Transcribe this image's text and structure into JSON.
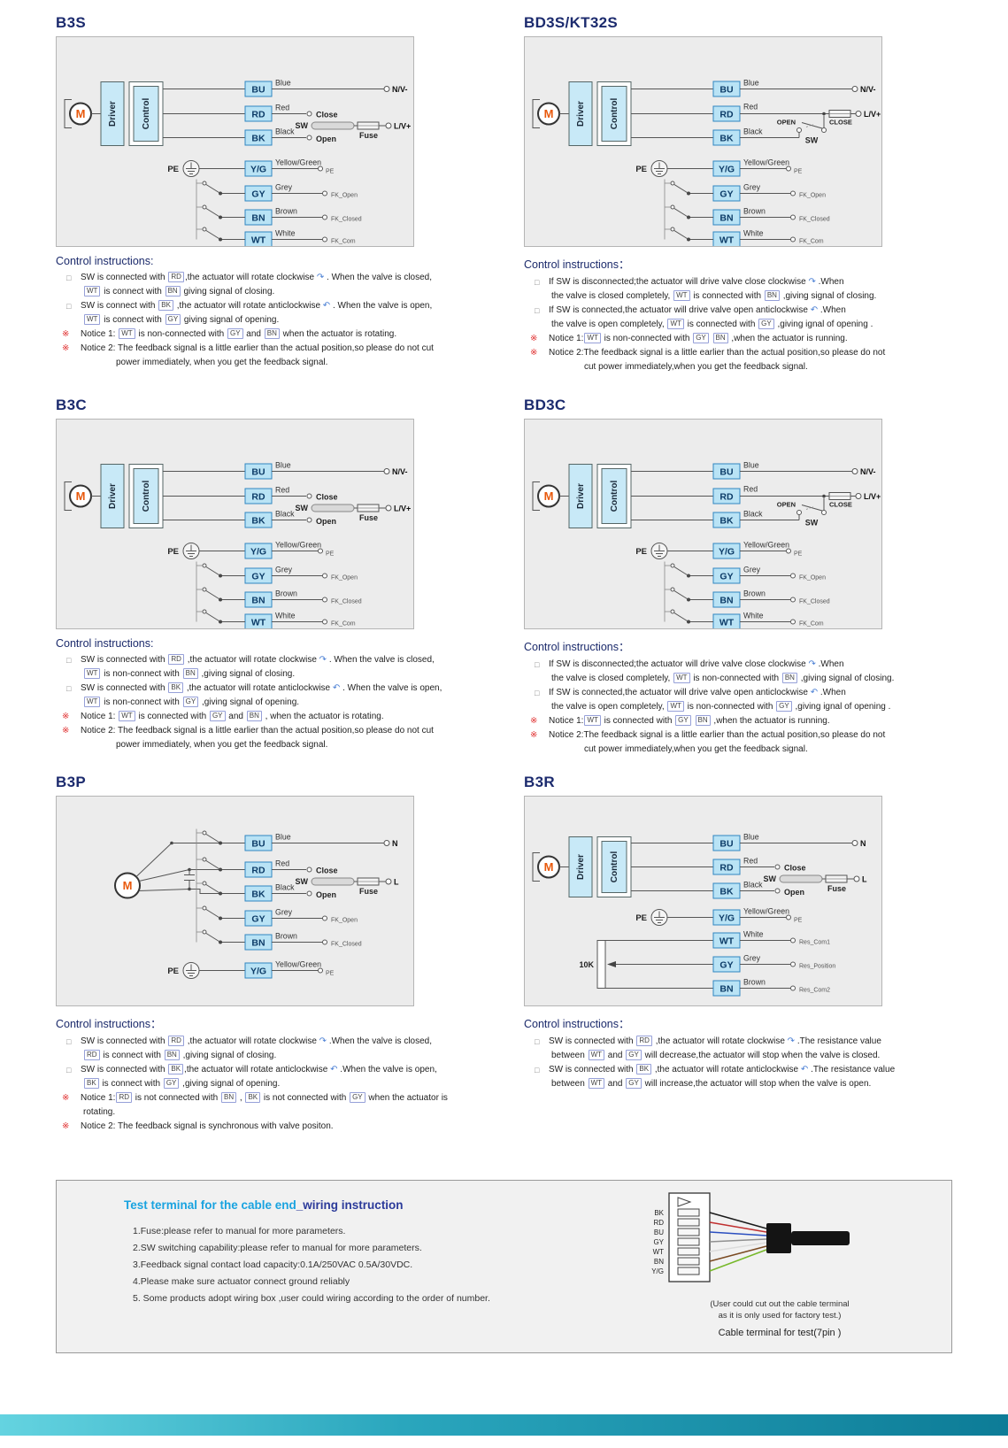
{
  "diagrams": {
    "a": {
      "motor": "M",
      "driver": "Driver",
      "control": "Control",
      "pe": "PE",
      "terminals": [
        "BU",
        "RD",
        "BK",
        "Y/G",
        "GY",
        "BN",
        "WT"
      ],
      "wires": [
        "Blue",
        "Red",
        "Black",
        "Yellow/Green",
        "Grey",
        "Brown",
        "White"
      ],
      "sw": "SW",
      "close": "Close",
      "open": "Open",
      "fuse": "Fuse",
      "n_term": "N/V-",
      "l_term": "L/V+",
      "pe_small": "PE",
      "fk_open": "FK_Open",
      "fk_closed": "FK_Closed",
      "fk_com": "FK_Com"
    },
    "b": {
      "motor": "M",
      "driver": "Driver",
      "control": "Control",
      "pe": "PE",
      "terminals": [
        "BU",
        "RD",
        "BK",
        "Y/G",
        "GY",
        "BN",
        "WT"
      ],
      "wires": [
        "Blue",
        "Red",
        "Black",
        "Yellow/Green",
        "Grey",
        "Brown",
        "White"
      ],
      "sw": "SW",
      "open_pos": "OPEN",
      "close_pos": "CLOSE",
      "n_term": "N/V-",
      "l_term": "L/V+",
      "pe_small": "PE",
      "fk_open": "FK_Open",
      "fk_closed": "FK_Closed",
      "fk_com": "FK_Com"
    },
    "p": {
      "motor": "M",
      "pe": "PE",
      "terminals": [
        "BU",
        "RD",
        "BK",
        "GY",
        "BN",
        "Y/G"
      ],
      "wires": [
        "Blue",
        "Red",
        "Black",
        "Grey",
        "Brown",
        "Yellow/Green"
      ],
      "sw": "SW",
      "close": "Close",
      "open": "Open",
      "fuse": "Fuse",
      "n_term": "N",
      "l_term": "L",
      "pe_small": "PE",
      "fk_open": "FK_Open",
      "fk_closed": "FK_Closed"
    },
    "r": {
      "motor": "M",
      "driver": "Driver",
      "control": "Control",
      "pe": "PE",
      "terminals": [
        "BU",
        "RD",
        "BK",
        "Y/G",
        "WT",
        "GY",
        "BN"
      ],
      "wires": [
        "Blue",
        "Red",
        "Black",
        "Yellow/Green",
        "White",
        "Grey",
        "Brown"
      ],
      "sw": "SW",
      "close": "Close",
      "open": "Open",
      "fuse": "Fuse",
      "n_term": "N",
      "l_term": "L",
      "pe_small": "PE",
      "pot": "10K",
      "res_com1": "Res_Com1",
      "res_pos": "Res_Position",
      "res_com2": "Res_Com2"
    }
  },
  "panels": {
    "b3s": {
      "title": "B3S",
      "instr_title": "Control instructions:",
      "instructions": [
        {
          "m": "c",
          "t": "SW is connected with [RD],the actuator will rotate clockwise {cw} . When the valve is closed,"
        },
        {
          "m": "",
          "t": "[WT] is connect with [BN] giving signal of closing."
        },
        {
          "m": "c",
          "t": "SW is connect with [BK] ,the actuator will rotate anticlockwise {ccw} . When the valve is open,"
        },
        {
          "m": "",
          "t": "[WT] is connect with [GY] giving signal of opening."
        },
        {
          "m": "n",
          "t": "Notice 1: [WT] is non-connected with [GY] and [BN] when the actuator is rotating."
        },
        {
          "m": "n",
          "t": "Notice 2: The feedback signal is a little earlier than the actual position,so please do not cut"
        },
        {
          "m": "",
          "i": 2,
          "t": "power immediately, when you get the feedback signal."
        }
      ]
    },
    "bd3s": {
      "title": "BD3S/KT32S",
      "instr_title": "Control instructions：",
      "instructions": [
        {
          "m": "c",
          "t": "If SW is disconnected;the actuator will drive valve close clockwise {cw} .When"
        },
        {
          "m": "",
          "t": "the valve is closed completely, [WT] is connected with [BN] ,giving signal of closing."
        },
        {
          "m": "c",
          "t": "If SW is connected,the actuator will drive valve open anticlockwise {ccw} .When"
        },
        {
          "m": "",
          "t": "the valve is open completely, [WT] is connected with [GY] ,giving ignal of opening ."
        },
        {
          "m": "n",
          "t": "Notice 1:[WT] is  non-connected with [GY] [BN] ,when the actuator is running."
        },
        {
          "m": "n",
          "t": "Notice 2:The feedback signal is a little earlier than the actual position,so please do not"
        },
        {
          "m": "",
          "i": 2,
          "t": "cut power immediately,when you get the feedback signal."
        }
      ]
    },
    "b3c": {
      "title": "B3C",
      "instr_title": "Control instructions:",
      "instructions": [
        {
          "m": "c",
          "t": "SW is connected with [RD] ,the actuator will rotate clockwise {cw} . When the valve is closed,"
        },
        {
          "m": "",
          "t": "[WT] is non-connect with [BN] ,giving signal of closing."
        },
        {
          "m": "c",
          "t": "SW is connected with [BK] ,the actuator will rotate anticlockwise {ccw} . When the valve is open,"
        },
        {
          "m": "",
          "t": "[WT] is non-connect with [GY] ,giving signal of opening."
        },
        {
          "m": "n",
          "t": "Notice 1: [WT] is connected with [GY] and [BN] , when the actuator is rotating."
        },
        {
          "m": "n",
          "t": "Notice 2: The feedback signal is a little earlier than the actual position,so please do not cut"
        },
        {
          "m": "",
          "i": 2,
          "t": "power immediately, when you get the feedback signal."
        }
      ]
    },
    "bd3c": {
      "title": "BD3C",
      "instr_title": "Control instructions：",
      "instructions": [
        {
          "m": "c",
          "t": "If SW is disconnected;the actuator will drive valve close clockwise {cw} .When"
        },
        {
          "m": "",
          "t": "the valve is closed completely, [WT] is non-connected with [BN] ,giving signal of closing."
        },
        {
          "m": "c",
          "t": "If SW is connected,the actuator will drive valve open anticlockwise {ccw} .When"
        },
        {
          "m": "",
          "t": "the valve is open completely, [WT] is non-connected with [GY] ,giving ignal of opening ."
        },
        {
          "m": "n",
          "t": "Notice 1:[WT] is  connected with [GY] [BN] ,when the actuator is running."
        },
        {
          "m": "n",
          "t": "Notice 2:The feedback signal is a little earlier than the actual position,so please do not"
        },
        {
          "m": "",
          "i": 2,
          "t": "cut power immediately,when you get the feedback signal."
        }
      ]
    },
    "b3p": {
      "title": "B3P",
      "instr_title": "Control instructions：",
      "instructions": [
        {
          "m": "c",
          "t": "SW is connected with [RD] ,the actuator will rotate clockwise {cw} .When the valve is closed,"
        },
        {
          "m": "",
          "t": "[RD] is connect with [BN] ,giving signal of closing."
        },
        {
          "m": "c",
          "t": "SW is connected with [BK],the actuator will rotate anticlockwise {ccw} .When the valve is open,"
        },
        {
          "m": "",
          "t": "[BK] is connect with [GY] ,giving signal of opening."
        },
        {
          "m": "n",
          "t": "Notice 1:[RD] is not connected with [BN] , [BK] is not connected with [GY] when the actuator is"
        },
        {
          "m": "",
          "t": "rotating."
        },
        {
          "m": "n",
          "t": "Notice 2: The feedback signal is synchronous with valve positon."
        }
      ]
    },
    "b3r": {
      "title": "B3R",
      "instr_title": "Control instructions：",
      "instructions": [
        {
          "m": "c",
          "t": "SW is connected with [RD] ,the actuator will rotate clockwise {cw} .The resistance value"
        },
        {
          "m": "",
          "t": "between [WT] and [GY] will decrease,the actuator will stop when the valve is closed."
        },
        {
          "m": "c",
          "t": "SW is connected with [BK] ,the actuator will rotate anticlockwise {ccw} .The resistance value"
        },
        {
          "m": "",
          "t": "between [WT] and [GY] will increase,the actuator will stop when the valve is open."
        }
      ]
    }
  },
  "footer": {
    "title_blue": "Test terminal for the cable end",
    "title_dark": "_wiring instruction",
    "items": [
      "1.Fuse:please refer to manual for more parameters.",
      "2.SW switching capability:please refer to manual for more parameters.",
      "3.Feedback signal contact load capacity:0.1A/250VAC 0.5A/30VDC.",
      "4.Please make sure actuator connect ground reliably",
      "5. Some products adopt wiring box ,user could wiring according to the order of number."
    ],
    "pins": [
      "BK",
      "RD",
      "BU",
      "GY",
      "WT",
      "BN",
      "Y/G"
    ],
    "note1": "(User could cut out the cable terminal",
    "note2": "as it is only used for factory test.)",
    "caption": "Cable terminal for test(7pin )"
  }
}
